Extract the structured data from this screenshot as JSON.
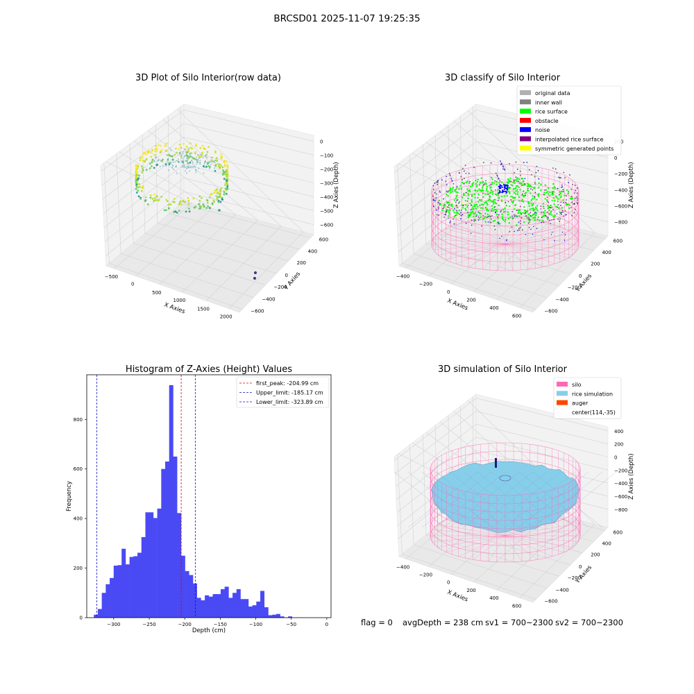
{
  "figure": {
    "suptitle": "BRCSD01 2025-11-07 19:25:35",
    "footer": {
      "flag": "flag = 0",
      "avg_depth": "avgDepth = 238 cm",
      "sv1": "sv1 = 700~2300",
      "sv2": "sv2 = 700~2300"
    }
  },
  "colors": {
    "bar": "#4a4af5",
    "first_peak": "#e00000",
    "limit": "#1010c0",
    "silo": "#ff69b4",
    "rice_sim": "#87ceeb",
    "auger": "#ff4500",
    "rice_surface": "#00ff00",
    "noise": "#0000ff",
    "inner_wall": "#808080",
    "original": "#b0b0b0",
    "interp": "#800080",
    "symmetric": "#ffff00",
    "obstacle": "#ff0000"
  },
  "chart_data": [
    {
      "type": "scatter3d",
      "title": "3D Plot of Silo Interior(row data)",
      "xlabel": "X Axies",
      "ylabel": "Y Axies",
      "zlabel": "Z Axies (Depth)",
      "xticks": [
        "−500",
        "0",
        "500",
        "1000",
        "1500",
        "2000"
      ],
      "yticks": [
        "−600",
        "−400",
        "−200",
        "0",
        "200",
        "400",
        "600"
      ],
      "zticks": [
        "0",
        "−100",
        "−200",
        "−300",
        "−400",
        "−500",
        "−600"
      ],
      "colormap": "viridis",
      "description_points": "dense elliptical ring of points near x -400..300, y -300..600, z -80..-420, plus outliers near x 1800, y -600"
    },
    {
      "type": "scatter3d",
      "title": "3D classify of Silo Interior",
      "xlabel": "X Axies",
      "ylabel": "Y Axies",
      "zlabel": "Z Axies (Depth)",
      "xticks": [
        "−400",
        "−200",
        "0",
        "200",
        "400",
        "600"
      ],
      "yticks": [
        "−600",
        "−400",
        "−200",
        "0",
        "200",
        "400",
        "600"
      ],
      "zticks": [
        "200",
        "0",
        "−200",
        "−400",
        "−600",
        "−800"
      ],
      "legend_position": "top-right",
      "legend": [
        {
          "label": "original data",
          "color": "#b0b0b0"
        },
        {
          "label": "inner wall",
          "color": "#808080"
        },
        {
          "label": "rice surface",
          "color": "#00ff00"
        },
        {
          "label": "obstacle",
          "color": "#ff0000"
        },
        {
          "label": "noise",
          "color": "#0000ff"
        },
        {
          "label": "interpolated rice surface",
          "color": "#800080"
        },
        {
          "label": "symmetric generated points",
          "color": "#ffff00"
        }
      ]
    },
    {
      "type": "bar",
      "title": "Histogram of Z-Axies (Height) Values",
      "xlabel": "Depth (cm)",
      "ylabel": "Frequency",
      "xlim": [
        -338,
        6
      ],
      "ylim": [
        0,
        980
      ],
      "xticks": [
        -300,
        -250,
        -200,
        -150,
        -100,
        -50,
        0
      ],
      "xtick_labels": [
        "−300",
        "−250",
        "−200",
        "−150",
        "−100",
        "−50",
        "0"
      ],
      "yticks": [
        0,
        200,
        400,
        600,
        800
      ],
      "yticks_labels": [
        "0",
        "200",
        "400",
        "600",
        "800"
      ],
      "bin_start": -328,
      "bin_width": 5.58,
      "values": [
        12,
        35,
        100,
        135,
        160,
        210,
        212,
        278,
        215,
        245,
        248,
        262,
        325,
        425,
        425,
        402,
        440,
        600,
        630,
        938,
        650,
        422,
        250,
        188,
        172,
        138,
        80,
        70,
        90,
        85,
        95,
        95,
        115,
        125,
        80,
        100,
        115,
        75,
        75,
        45,
        50,
        65,
        108,
        42,
        10,
        12,
        15,
        5,
        0,
        5
      ],
      "vlines": [
        {
          "x": -204.99,
          "color": "#e00000",
          "label": "first_peak: -204.99 cm"
        },
        {
          "x": -185.17,
          "color": "#1010c0",
          "label": "Upper_limit: -185.17 cm"
        },
        {
          "x": -323.89,
          "color": "#1010c0",
          "label": "Lower_limit: -323.89 cm"
        }
      ],
      "legend_position": "top-right"
    },
    {
      "type": "surface3d",
      "title": "3D simulation of Silo Interior",
      "xlabel": "X Axies",
      "ylabel": "Y Axies",
      "zlabel": "Z Axies (Depth)",
      "xticks": [
        "−400",
        "−200",
        "0",
        "200",
        "400",
        "600"
      ],
      "yticks": [
        "−600",
        "−400",
        "−200",
        "0",
        "200",
        "400",
        "600"
      ],
      "zticks": [
        "400",
        "200",
        "0",
        "−200",
        "−400",
        "−600",
        "−800"
      ],
      "legend_position": "top-right",
      "legend": [
        {
          "label": "silo",
          "color": "#ff69b4"
        },
        {
          "label": "rice simulation",
          "color": "#87ceeb"
        },
        {
          "label": "auger",
          "color": "#ff4500"
        },
        {
          "label": "center(114,-35)",
          "color": ""
        }
      ]
    }
  ]
}
